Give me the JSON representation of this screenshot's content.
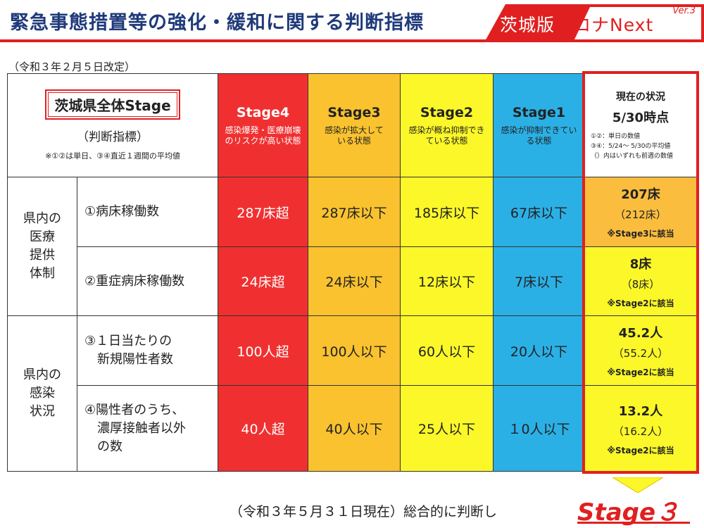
{
  "header": {
    "title": "緊急事態措置等の強化・緩和に関する判断指標",
    "brand_prefix": "茨城版",
    "brand_mid": "コロナ",
    "brand_suffix": "Next",
    "brand_version": "Ver.3"
  },
  "revision": "（令和３年２月５日改定）",
  "table": {
    "corner": {
      "badge": "茨城県全体Stage",
      "sub": "（判断指標）",
      "note": "※①②は単日、③④直近１週間の平均値"
    },
    "stages": [
      {
        "name": "Stage4",
        "desc": "感染爆発・医療崩壊のリスクが高い状態"
      },
      {
        "name": "Stage3",
        "desc": "感染が拡大している状態"
      },
      {
        "name": "Stage2",
        "desc": "感染が概ね抑制できている状態"
      },
      {
        "name": "Stage1",
        "desc": "感染が抑制できている状態"
      }
    ],
    "current": {
      "title": "現在の状況",
      "date": "5/30時点",
      "note1": "①②：単日の数値",
      "note2": "③④：5/24～ 5/30の平均値",
      "note3": "（）内はいずれも前週の数値"
    },
    "groups": [
      {
        "label_lines": [
          "県内の",
          "医療",
          "提供",
          "体制"
        ]
      },
      {
        "label_lines": [
          "県内の",
          "感染",
          "状況"
        ]
      }
    ],
    "rows": [
      {
        "label_lines": [
          "①病床稼働数"
        ],
        "values": [
          "287床超",
          "287床以下",
          "185床以下",
          "67床以下"
        ],
        "current": {
          "value": "207床",
          "prev": "（212床）",
          "hit": "※Stage3に該当"
        }
      },
      {
        "label_lines": [
          "②重症病床稼働数"
        ],
        "values": [
          "24床超",
          "24床以下",
          "12床以下",
          "7床以下"
        ],
        "current": {
          "value": "8床",
          "prev": "（8床）",
          "hit": "※Stage2に該当"
        }
      },
      {
        "label_lines": [
          "③１日当たりの",
          "　新規陽性者数"
        ],
        "values": [
          "100人超",
          "100人以下",
          "60人以下",
          "20人以下"
        ],
        "current": {
          "value": "45.2人",
          "prev": "（55.2人）",
          "hit": "※Stage2に該当"
        }
      },
      {
        "label_lines": [
          "④陽性者のうち、",
          "　濃厚接触者以外",
          "　の数"
        ],
        "values": [
          "40人超",
          "40人以下",
          "25人以下",
          "１0人以下"
        ],
        "current": {
          "value": "13.2人",
          "prev": "（16.2人）",
          "hit": "※Stage2に該当"
        }
      }
    ]
  },
  "footer": {
    "text": "（令和３年５月３１日現在）総合的に判断し",
    "stage": "Stage３"
  },
  "colors": {
    "stage4": "#f03030",
    "stage3": "#f9c22e",
    "stage2": "#fbf728",
    "stage1": "#2bb0e6",
    "accent": "#e02020",
    "title": "#1f3a7a"
  }
}
